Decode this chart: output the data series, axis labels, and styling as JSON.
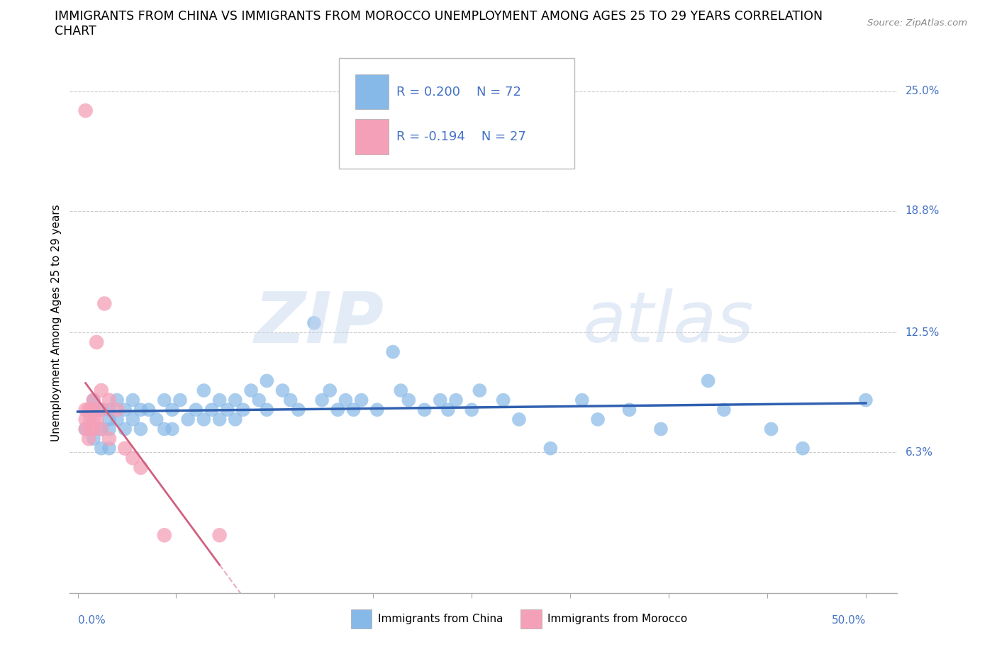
{
  "title_line1": "IMMIGRANTS FROM CHINA VS IMMIGRANTS FROM MOROCCO UNEMPLOYMENT AMONG AGES 25 TO 29 YEARS CORRELATION",
  "title_line2": "CHART",
  "source": "Source: ZipAtlas.com",
  "ylabel": "Unemployment Among Ages 25 to 29 years",
  "ytick_values": [
    0.25,
    0.188,
    0.125,
    0.063
  ],
  "ytick_labels": [
    "25.0%",
    "18.8%",
    "12.5%",
    "6.3%"
  ],
  "xlim": [
    0.0,
    0.5
  ],
  "ylim": [
    -0.01,
    0.27
  ],
  "legend_r_china": "R = 0.200",
  "legend_n_china": "N = 72",
  "legend_r_morocco": "R = -0.194",
  "legend_n_morocco": "N = 27",
  "color_china": "#87b9e8",
  "color_morocco": "#f4a0b8",
  "trendline_china_color": "#3060b0",
  "trendline_morocco_color": "#d06080",
  "china_x": [
    0.005,
    0.01,
    0.01,
    0.015,
    0.015,
    0.015,
    0.02,
    0.02,
    0.02,
    0.02,
    0.025,
    0.025,
    0.03,
    0.03,
    0.035,
    0.035,
    0.04,
    0.04,
    0.045,
    0.05,
    0.055,
    0.055,
    0.06,
    0.06,
    0.065,
    0.07,
    0.075,
    0.08,
    0.08,
    0.085,
    0.09,
    0.09,
    0.095,
    0.1,
    0.1,
    0.105,
    0.11,
    0.115,
    0.12,
    0.12,
    0.13,
    0.135,
    0.14,
    0.15,
    0.155,
    0.16,
    0.165,
    0.17,
    0.175,
    0.18,
    0.19,
    0.2,
    0.205,
    0.21,
    0.22,
    0.23,
    0.235,
    0.24,
    0.25,
    0.255,
    0.27,
    0.28,
    0.3,
    0.32,
    0.33,
    0.35,
    0.37,
    0.4,
    0.41,
    0.44,
    0.46,
    0.5
  ],
  "china_y": [
    0.075,
    0.09,
    0.07,
    0.085,
    0.075,
    0.065,
    0.085,
    0.08,
    0.075,
    0.065,
    0.09,
    0.08,
    0.085,
    0.075,
    0.09,
    0.08,
    0.085,
    0.075,
    0.085,
    0.08,
    0.09,
    0.075,
    0.085,
    0.075,
    0.09,
    0.08,
    0.085,
    0.095,
    0.08,
    0.085,
    0.09,
    0.08,
    0.085,
    0.09,
    0.08,
    0.085,
    0.095,
    0.09,
    0.1,
    0.085,
    0.095,
    0.09,
    0.085,
    0.13,
    0.09,
    0.095,
    0.085,
    0.09,
    0.085,
    0.09,
    0.085,
    0.115,
    0.095,
    0.09,
    0.085,
    0.09,
    0.085,
    0.09,
    0.085,
    0.095,
    0.09,
    0.08,
    0.065,
    0.09,
    0.08,
    0.085,
    0.075,
    0.1,
    0.085,
    0.075,
    0.065,
    0.09
  ],
  "morocco_x": [
    0.005,
    0.005,
    0.005,
    0.005,
    0.007,
    0.007,
    0.008,
    0.008,
    0.008,
    0.01,
    0.01,
    0.01,
    0.01,
    0.012,
    0.012,
    0.015,
    0.015,
    0.015,
    0.017,
    0.02,
    0.02,
    0.025,
    0.03,
    0.035,
    0.04,
    0.055,
    0.09
  ],
  "morocco_y": [
    0.24,
    0.085,
    0.08,
    0.075,
    0.085,
    0.07,
    0.085,
    0.08,
    0.075,
    0.09,
    0.08,
    0.085,
    0.075,
    0.12,
    0.08,
    0.095,
    0.085,
    0.075,
    0.14,
    0.09,
    0.07,
    0.085,
    0.065,
    0.06,
    0.055,
    0.02,
    0.02
  ]
}
